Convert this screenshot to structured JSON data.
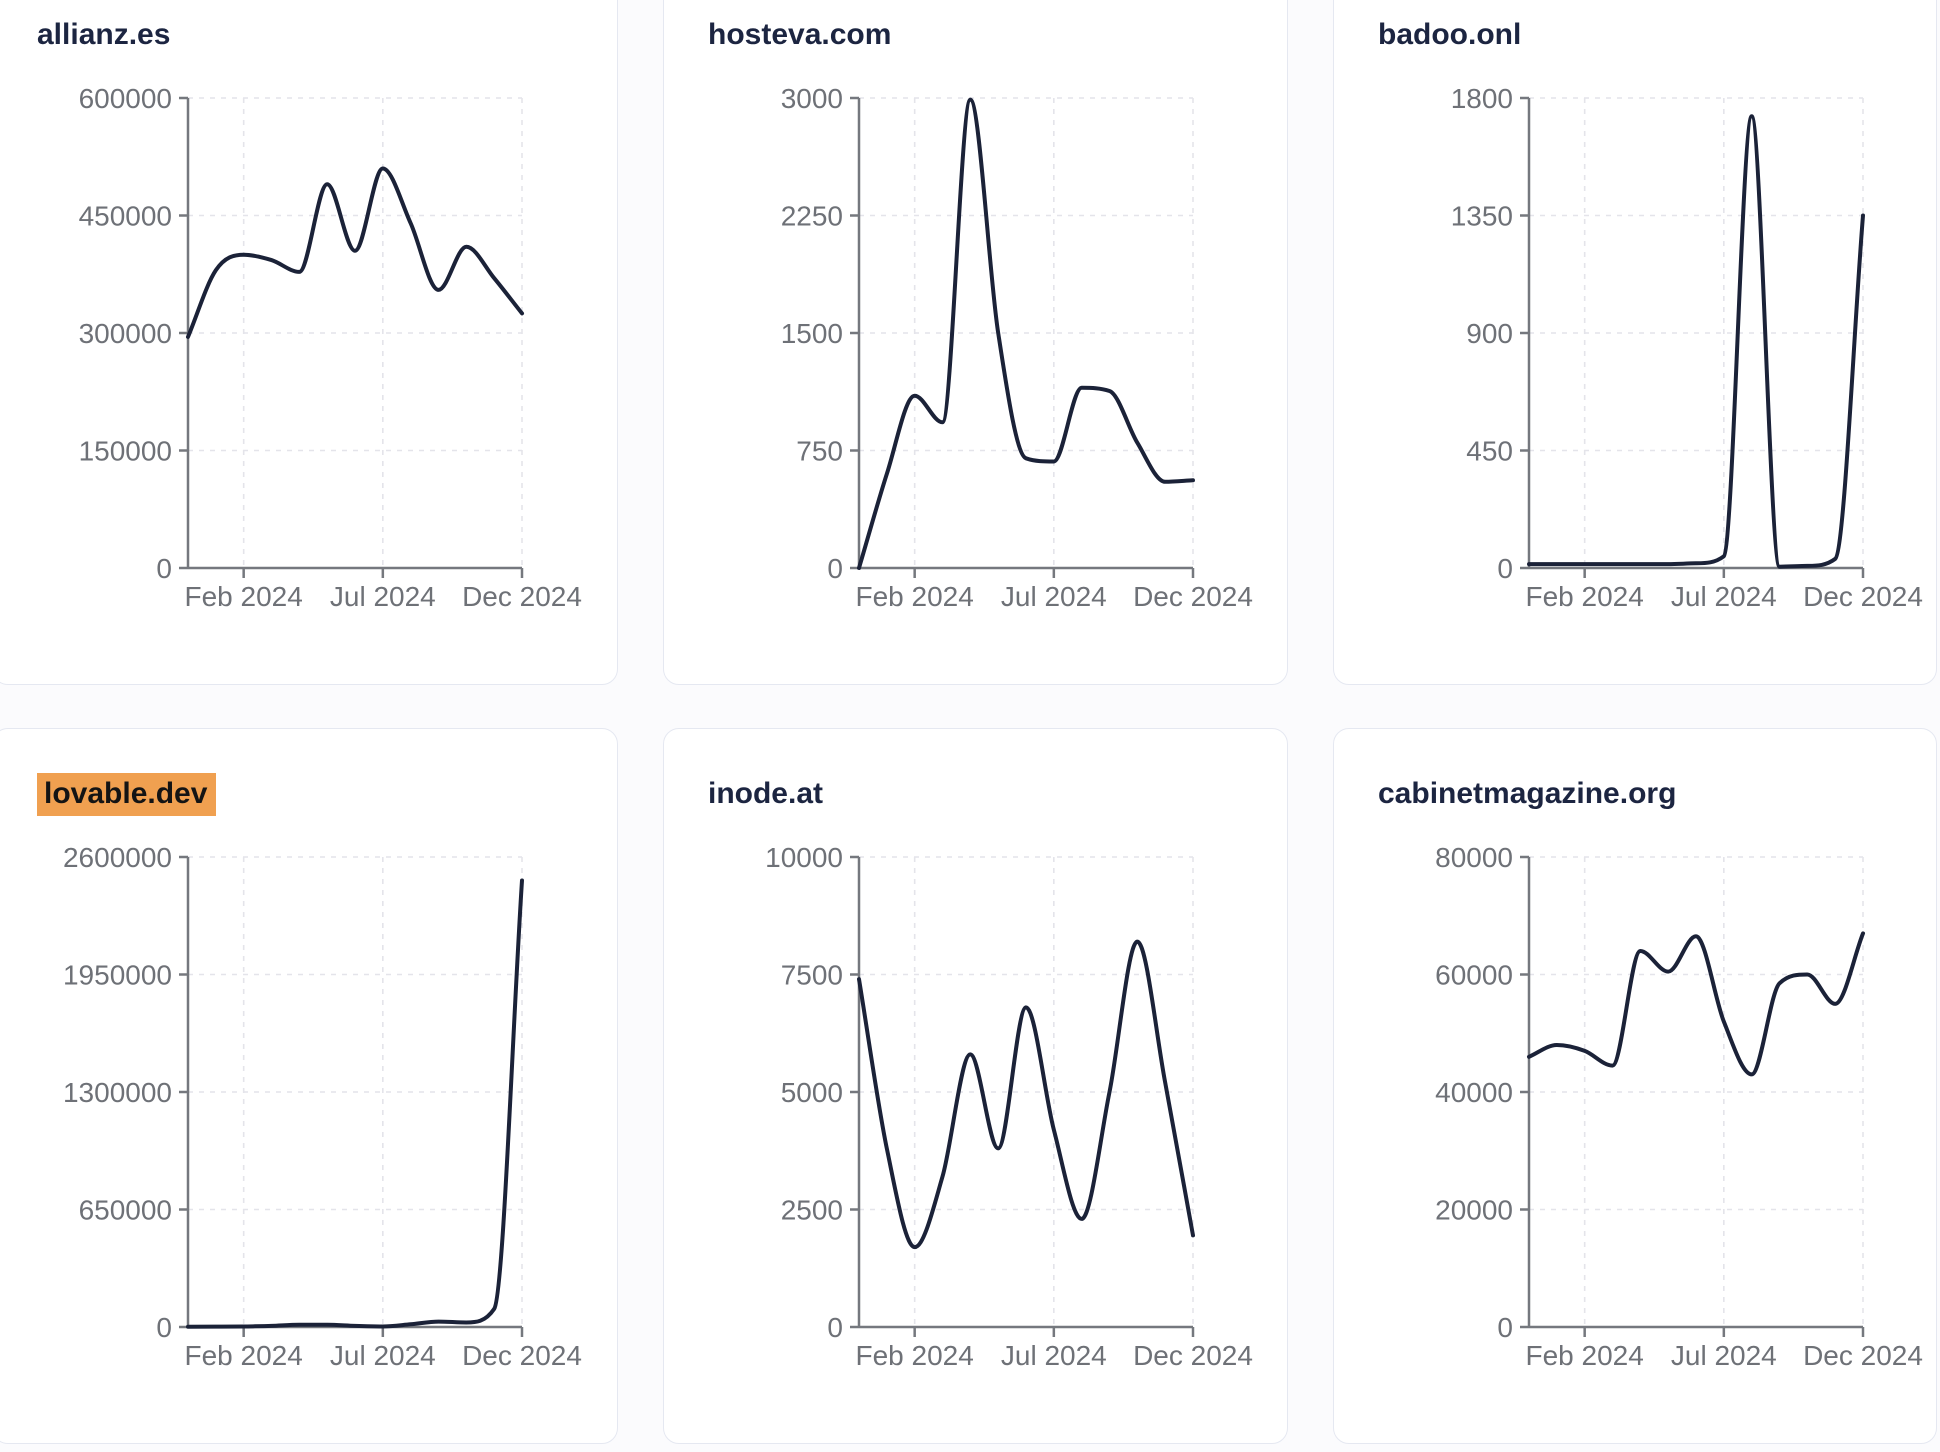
{
  "page": {
    "background": "#fbfbfd",
    "description": "Dashboard grid of six website traffic sparkline cards"
  },
  "theme": {
    "line-color": "#1b2238",
    "title-color": "#1c2541",
    "tick-color": "#6e7177",
    "axis-color": "#75787e",
    "grid-color": "#e4e4ea",
    "card-border": "#e5e8f1",
    "card-bg": "#ffffff",
    "page-bg": "#fbfbfd",
    "highlight": "#f0a050",
    "highlight-text": "#141414"
  },
  "chart_data": [
    {
      "type": "line",
      "title": "allianz.es",
      "title_highlighted": false,
      "x": [
        "Dec 2023",
        "Jan 2024",
        "Feb 2024",
        "Mar 2024",
        "Apr 2024",
        "May 2024",
        "Jun 2024",
        "Jul 2024",
        "Aug 2024",
        "Sep 2024",
        "Oct 2024",
        "Nov 2024",
        "Dec 2024"
      ],
      "values": [
        295000,
        380000,
        400000,
        393000,
        378000,
        490000,
        405000,
        510000,
        440000,
        355000,
        410000,
        370000,
        325000
      ],
      "ylim": [
        0,
        600000
      ],
      "y_tick_labels": [
        "600000",
        "450000",
        "300000",
        "150000",
        "0"
      ],
      "x_tick_labels": [
        "Feb 2024",
        "Jul 2024",
        "Dec 2024"
      ],
      "x_tick_indices": [
        2,
        7,
        12
      ],
      "grid": true,
      "legend": false
    },
    {
      "type": "line",
      "title": "hosteva.com",
      "title_highlighted": false,
      "x": [
        "Dec 2023",
        "Jan 2024",
        "Feb 2024",
        "Mar 2024",
        "Apr 2024",
        "May 2024",
        "Jun 2024",
        "Jul 2024",
        "Aug 2024",
        "Sep 2024",
        "Oct 2024",
        "Nov 2024",
        "Dec 2024"
      ],
      "values": [
        0,
        600,
        1100,
        930,
        2990,
        1500,
        700,
        680,
        1150,
        1130,
        800,
        550,
        560
      ],
      "ylim": [
        0,
        3000
      ],
      "y_tick_labels": [
        "3000",
        "2250",
        "1500",
        "750",
        "0"
      ],
      "x_tick_labels": [
        "Feb 2024",
        "Jul 2024",
        "Dec 2024"
      ],
      "x_tick_indices": [
        2,
        7,
        12
      ],
      "grid": true,
      "legend": false
    },
    {
      "type": "line",
      "title": "badoo.onl",
      "title_highlighted": false,
      "x": [
        "Dec 2023",
        "Jan 2024",
        "Feb 2024",
        "Mar 2024",
        "Apr 2024",
        "May 2024",
        "Jun 2024",
        "Jul 2024",
        "Aug 2024",
        "Sep 2024",
        "Oct 2024",
        "Nov 2024",
        "Dec 2024"
      ],
      "values": [
        15,
        15,
        15,
        15,
        15,
        15,
        18,
        45,
        1730,
        5,
        8,
        35,
        1350
      ],
      "ylim": [
        0,
        1800
      ],
      "y_tick_labels": [
        "1800",
        "1350",
        "900",
        "450",
        "0"
      ],
      "x_tick_labels": [
        "Feb 2024",
        "Jul 2024",
        "Dec 2024"
      ],
      "x_tick_indices": [
        2,
        7,
        12
      ],
      "grid": true,
      "legend": false
    },
    {
      "type": "line",
      "title": "lovable.dev",
      "title_highlighted": true,
      "x": [
        "Dec 2023",
        "Jan 2024",
        "Feb 2024",
        "Mar 2024",
        "Apr 2024",
        "May 2024",
        "Jun 2024",
        "Jul 2024",
        "Aug 2024",
        "Sep 2024",
        "Oct 2024",
        "Nov 2024",
        "Dec 2024"
      ],
      "values": [
        1000,
        2000,
        3000,
        6000,
        12000,
        12000,
        6000,
        3000,
        15000,
        30000,
        25000,
        100000,
        2470000
      ],
      "ylim": [
        0,
        2600000
      ],
      "y_tick_labels": [
        "2600000",
        "1950000",
        "1300000",
        "650000",
        "0"
      ],
      "x_tick_labels": [
        "Feb 2024",
        "Jul 2024",
        "Dec 2024"
      ],
      "x_tick_indices": [
        2,
        7,
        12
      ],
      "grid": true,
      "legend": false
    },
    {
      "type": "line",
      "title": "inode.at",
      "title_highlighted": false,
      "x": [
        "Dec 2023",
        "Jan 2024",
        "Feb 2024",
        "Mar 2024",
        "Apr 2024",
        "May 2024",
        "Jun 2024",
        "Jul 2024",
        "Aug 2024",
        "Sep 2024",
        "Oct 2024",
        "Nov 2024",
        "Dec 2024"
      ],
      "values": [
        7400,
        3800,
        1700,
        3200,
        5800,
        3800,
        6800,
        4200,
        2300,
        5000,
        8200,
        5200,
        1950
      ],
      "ylim": [
        0,
        10000
      ],
      "y_tick_labels": [
        "10000",
        "7500",
        "5000",
        "2500",
        "0"
      ],
      "x_tick_labels": [
        "Feb 2024",
        "Jul 2024",
        "Dec 2024"
      ],
      "x_tick_indices": [
        2,
        7,
        12
      ],
      "grid": true,
      "legend": false
    },
    {
      "type": "line",
      "title": "cabinetmagazine.org",
      "title_highlighted": false,
      "x": [
        "Dec 2023",
        "Jan 2024",
        "Feb 2024",
        "Mar 2024",
        "Apr 2024",
        "May 2024",
        "Jun 2024",
        "Jul 2024",
        "Aug 2024",
        "Sep 2024",
        "Oct 2024",
        "Nov 2024",
        "Dec 2024"
      ],
      "values": [
        46000,
        48000,
        47000,
        44500,
        64000,
        60500,
        66500,
        52000,
        43000,
        58500,
        60000,
        55000,
        67000
      ],
      "ylim": [
        0,
        80000
      ],
      "y_tick_labels": [
        "80000",
        "60000",
        "40000",
        "20000",
        "0"
      ],
      "x_tick_labels": [
        "Feb 2024",
        "Jul 2024",
        "Dec 2024"
      ],
      "x_tick_indices": [
        2,
        7,
        12
      ],
      "grid": true,
      "legend": false
    }
  ]
}
